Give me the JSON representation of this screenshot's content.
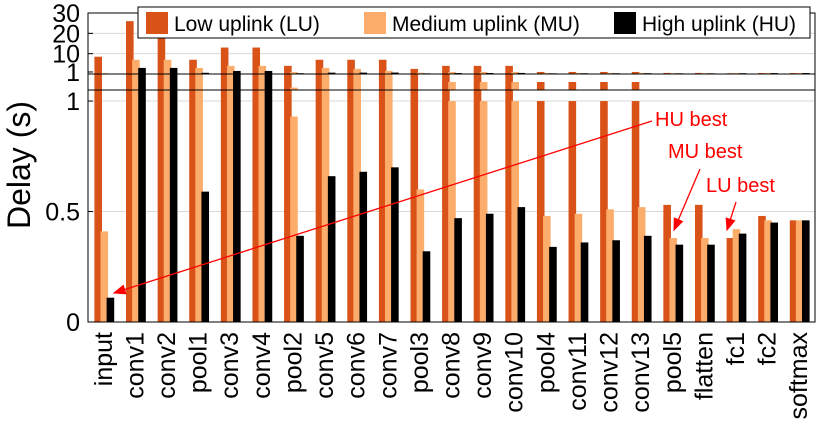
{
  "chart_data": {
    "type": "bar",
    "ylabel": "Delay (s)",
    "categories": [
      "input",
      "conv1",
      "conv2",
      "pool1",
      "conv3",
      "conv4",
      "pool2",
      "conv5",
      "conv6",
      "conv7",
      "pool3",
      "conv8",
      "conv9",
      "conv10",
      "pool4",
      "conv11",
      "conv12",
      "conv13",
      "pool5",
      "flatten",
      "fc1",
      "fc2",
      "softmax"
    ],
    "series": [
      {
        "name": "Low uplink (LU)",
        "color": "#d95319",
        "values": [
          8.5,
          26,
          18,
          7,
          13,
          13,
          4,
          7,
          7,
          7,
          2.5,
          4,
          4,
          4,
          1,
          1,
          1,
          1,
          0.53,
          0.53,
          0.38,
          0.48,
          0.46
        ]
      },
      {
        "name": "Medium uplink (MU)",
        "color": "#fdad6b",
        "values": [
          0.41,
          7,
          7,
          3,
          4,
          4,
          0.93,
          3,
          2.5,
          1.5,
          0.6,
          1,
          1,
          1,
          0.48,
          0.49,
          0.51,
          0.52,
          0.38,
          0.38,
          0.42,
          0.46,
          0.46
        ]
      },
      {
        "name": "High uplink (HU)",
        "color": "#000000",
        "values": [
          0.11,
          3,
          3,
          0.59,
          1.5,
          1.5,
          0.39,
          0.66,
          0.68,
          0.7,
          0.32,
          0.47,
          0.49,
          0.52,
          0.34,
          0.36,
          0.37,
          0.39,
          0.35,
          0.35,
          0.4,
          0.45,
          0.46
        ]
      }
    ],
    "axes": {
      "top": {
        "scale": "linear",
        "ylim": [
          0,
          30
        ],
        "ticks": [
          "1",
          "10",
          "20",
          "30"
        ]
      },
      "middle": {
        "scale": "linear",
        "ylim": [
          0.9,
          1.1
        ]
      },
      "bottom": {
        "scale": "linear",
        "ylim": [
          0,
          1.05
        ],
        "ticks": [
          "0",
          "0.5",
          "1"
        ]
      }
    },
    "grid": true,
    "legend_position": "top",
    "annotations": [
      {
        "text": "HU best",
        "color": "#ff0000",
        "points_to": "input"
      },
      {
        "text": "MU best",
        "color": "#ff0000",
        "points_to": "pool5"
      },
      {
        "text": "LU best",
        "color": "#ff0000",
        "points_to": "fc1"
      }
    ]
  }
}
